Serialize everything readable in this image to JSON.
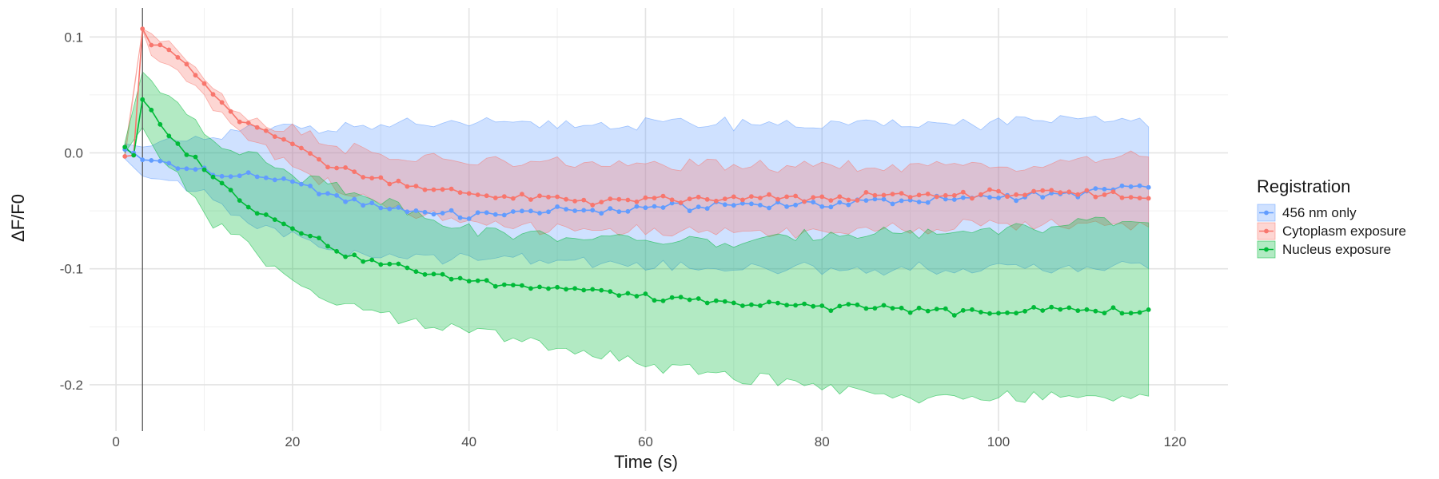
{
  "chart_data": {
    "type": "line",
    "xlabel": "Time (s)",
    "ylabel": "ΔF/F0",
    "xlim": [
      -3,
      126
    ],
    "ylim": [
      -0.24,
      0.125
    ],
    "x_ticks": [
      0,
      20,
      40,
      60,
      80,
      100,
      120
    ],
    "x_tick_labels": [
      "0",
      "20",
      "40",
      "60",
      "80",
      "100",
      "120"
    ],
    "y_ticks": [
      0.1,
      0.0,
      -0.1,
      -0.2
    ],
    "y_tick_labels": [
      "0.1",
      "0.0",
      "-0.1",
      "-0.2"
    ],
    "grid": true,
    "vline_x": 3,
    "legend": {
      "title": "Registration",
      "position": "right"
    },
    "series": [
      {
        "name": "456 nm only",
        "color": "#619CFF",
        "anchors": [
          [
            1,
            0.003
          ],
          [
            2,
            0.0
          ],
          [
            3,
            -0.006
          ],
          [
            5,
            -0.007
          ],
          [
            7,
            -0.014
          ],
          [
            10,
            -0.014
          ],
          [
            12,
            -0.02
          ],
          [
            15,
            -0.02
          ],
          [
            18,
            -0.023
          ],
          [
            20,
            -0.026
          ],
          [
            24,
            -0.036
          ],
          [
            28,
            -0.043
          ],
          [
            32,
            -0.048
          ],
          [
            36,
            -0.052
          ],
          [
            40,
            -0.055
          ],
          [
            45,
            -0.052
          ],
          [
            50,
            -0.05
          ],
          [
            55,
            -0.05
          ],
          [
            60,
            -0.047
          ],
          [
            65,
            -0.047
          ],
          [
            70,
            -0.045
          ],
          [
            75,
            -0.045
          ],
          [
            80,
            -0.044
          ],
          [
            85,
            -0.042
          ],
          [
            90,
            -0.041
          ],
          [
            95,
            -0.04
          ],
          [
            100,
            -0.038
          ],
          [
            105,
            -0.036
          ],
          [
            110,
            -0.035
          ],
          [
            114,
            -0.03
          ],
          [
            117,
            -0.031
          ]
        ],
        "band_upper": [
          [
            1,
            0.008
          ],
          [
            3,
            0.005
          ],
          [
            10,
            0.012
          ],
          [
            15,
            0.02
          ],
          [
            20,
            0.022
          ],
          [
            30,
            0.024
          ],
          [
            50,
            0.025
          ],
          [
            80,
            0.025
          ],
          [
            100,
            0.026
          ],
          [
            115,
            0.03
          ],
          [
            117,
            0.022
          ]
        ],
        "band_lower": [
          [
            1,
            -0.005
          ],
          [
            3,
            -0.02
          ],
          [
            10,
            -0.035
          ],
          [
            15,
            -0.06
          ],
          [
            20,
            -0.07
          ],
          [
            25,
            -0.085
          ],
          [
            30,
            -0.09
          ],
          [
            40,
            -0.09
          ],
          [
            60,
            -0.097
          ],
          [
            80,
            -0.1
          ],
          [
            100,
            -0.1
          ],
          [
            117,
            -0.097
          ]
        ]
      },
      {
        "name": "Cytoplasm exposure",
        "color": "#F8766D",
        "anchors": [
          [
            1,
            -0.003
          ],
          [
            2,
            -0.002
          ],
          [
            3,
            0.107
          ],
          [
            4,
            0.093
          ],
          [
            6,
            0.09
          ],
          [
            8,
            0.075
          ],
          [
            10,
            0.06
          ],
          [
            12,
            0.04
          ],
          [
            14,
            0.028
          ],
          [
            16,
            0.02
          ],
          [
            18,
            0.013
          ],
          [
            20,
            0.008
          ],
          [
            22,
            0.0
          ],
          [
            25,
            -0.013
          ],
          [
            28,
            -0.02
          ],
          [
            32,
            -0.025
          ],
          [
            36,
            -0.032
          ],
          [
            40,
            -0.035
          ],
          [
            45,
            -0.038
          ],
          [
            50,
            -0.04
          ],
          [
            55,
            -0.042
          ],
          [
            60,
            -0.041
          ],
          [
            70,
            -0.04
          ],
          [
            80,
            -0.039
          ],
          [
            90,
            -0.037
          ],
          [
            100,
            -0.035
          ],
          [
            110,
            -0.035
          ],
          [
            117,
            -0.038
          ]
        ],
        "band_upper": [
          [
            1,
            0.002
          ],
          [
            3,
            0.107
          ],
          [
            4,
            0.103
          ],
          [
            6,
            0.098
          ],
          [
            8,
            0.085
          ],
          [
            10,
            0.068
          ],
          [
            12,
            0.048
          ],
          [
            14,
            0.034
          ],
          [
            16,
            0.028
          ],
          [
            18,
            0.022
          ],
          [
            20,
            0.02
          ],
          [
            25,
            0.006
          ],
          [
            30,
            -0.002
          ],
          [
            40,
            -0.008
          ],
          [
            60,
            -0.01
          ],
          [
            80,
            -0.012
          ],
          [
            100,
            -0.012
          ],
          [
            115,
            -0.002
          ],
          [
            117,
            -0.006
          ]
        ],
        "band_lower": [
          [
            1,
            -0.005
          ],
          [
            3,
            0.106
          ],
          [
            4,
            0.084
          ],
          [
            6,
            0.08
          ],
          [
            8,
            0.066
          ],
          [
            10,
            0.052
          ],
          [
            12,
            0.032
          ],
          [
            14,
            0.022
          ],
          [
            16,
            0.01
          ],
          [
            18,
            0.0
          ],
          [
            20,
            -0.01
          ],
          [
            25,
            -0.032
          ],
          [
            30,
            -0.045
          ],
          [
            40,
            -0.062
          ],
          [
            60,
            -0.068
          ],
          [
            80,
            -0.068
          ],
          [
            100,
            -0.062
          ],
          [
            117,
            -0.062
          ]
        ]
      },
      {
        "name": "Nucleus exposure",
        "color": "#00BA38",
        "anchors": [
          [
            1,
            0.005
          ],
          [
            2,
            -0.002
          ],
          [
            3,
            0.046
          ],
          [
            4,
            0.037
          ],
          [
            5,
            0.024
          ],
          [
            6,
            0.012
          ],
          [
            8,
            0.0
          ],
          [
            10,
            -0.013
          ],
          [
            12,
            -0.028
          ],
          [
            14,
            -0.04
          ],
          [
            16,
            -0.05
          ],
          [
            18,
            -0.058
          ],
          [
            20,
            -0.063
          ],
          [
            22,
            -0.072
          ],
          [
            24,
            -0.08
          ],
          [
            26,
            -0.087
          ],
          [
            28,
            -0.092
          ],
          [
            30,
            -0.095
          ],
          [
            32,
            -0.098
          ],
          [
            35,
            -0.103
          ],
          [
            38,
            -0.108
          ],
          [
            40,
            -0.11
          ],
          [
            45,
            -0.113
          ],
          [
            50,
            -0.117
          ],
          [
            55,
            -0.12
          ],
          [
            60,
            -0.125
          ],
          [
            65,
            -0.128
          ],
          [
            70,
            -0.13
          ],
          [
            75,
            -0.131
          ],
          [
            80,
            -0.132
          ],
          [
            85,
            -0.133
          ],
          [
            90,
            -0.135
          ],
          [
            95,
            -0.137
          ],
          [
            100,
            -0.137
          ],
          [
            105,
            -0.135
          ],
          [
            110,
            -0.135
          ],
          [
            115,
            -0.137
          ],
          [
            117,
            -0.136
          ]
        ],
        "band_upper": [
          [
            1,
            0.009
          ],
          [
            3,
            0.07
          ],
          [
            5,
            0.055
          ],
          [
            8,
            0.038
          ],
          [
            10,
            0.02
          ],
          [
            12,
            0.008
          ],
          [
            15,
            -0.002
          ],
          [
            18,
            -0.01
          ],
          [
            20,
            -0.018
          ],
          [
            25,
            -0.028
          ],
          [
            30,
            -0.04
          ],
          [
            35,
            -0.055
          ],
          [
            40,
            -0.065
          ],
          [
            50,
            -0.073
          ],
          [
            60,
            -0.075
          ],
          [
            70,
            -0.077
          ],
          [
            80,
            -0.07
          ],
          [
            90,
            -0.068
          ],
          [
            100,
            -0.066
          ],
          [
            110,
            -0.062
          ],
          [
            117,
            -0.06
          ]
        ],
        "band_lower": [
          [
            1,
            0.0
          ],
          [
            3,
            0.022
          ],
          [
            5,
            -0.005
          ],
          [
            8,
            -0.03
          ],
          [
            10,
            -0.052
          ],
          [
            12,
            -0.065
          ],
          [
            15,
            -0.08
          ],
          [
            18,
            -0.1
          ],
          [
            20,
            -0.11
          ],
          [
            25,
            -0.13
          ],
          [
            30,
            -0.14
          ],
          [
            35,
            -0.147
          ],
          [
            40,
            -0.153
          ],
          [
            50,
            -0.165
          ],
          [
            60,
            -0.183
          ],
          [
            70,
            -0.193
          ],
          [
            80,
            -0.2
          ],
          [
            90,
            -0.21
          ],
          [
            100,
            -0.212
          ],
          [
            110,
            -0.21
          ],
          [
            117,
            -0.212
          ]
        ]
      }
    ]
  }
}
